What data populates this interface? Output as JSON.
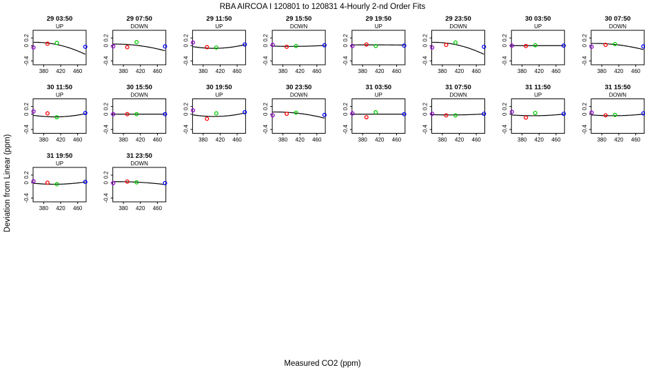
{
  "figure": {
    "title": "RBA   AIRCOA I   120801 to 120831   4-Hourly 2-nd Order Fits",
    "xlabel": "Measured CO2 (ppm)",
    "ylabel": "Deviation from Linear (ppm)"
  },
  "chart_data": {
    "type": "scatter",
    "title": "RBA   AIRCOA I   120801 to 120831   4-Hourly 2-nd Order Fits",
    "xlabel": "Measured CO2 (ppm)",
    "ylabel": "Deviation from Linear (ppm)",
    "xlim": [
      355,
      480
    ],
    "ylim": [
      -0.5,
      0.4
    ],
    "xticks": [
      380,
      420,
      460
    ],
    "xtick_labels": [
      "380",
      "420",
      "460"
    ],
    "yticks": [
      -0.4,
      0.0,
      0.2
    ],
    "ytick_labels": [
      "-0.4",
      "0",
      "0.2"
    ],
    "point_colors": [
      "#9400D3",
      "#FF0000",
      "#00CC00",
      "#0000FF"
    ],
    "curve_color": "#000000",
    "panels": [
      {
        "label": "29 03:50",
        "direction": "UP",
        "x": [
          356,
          389,
          411,
          478
        ],
        "y": [
          -0.05,
          0.05,
          0.07,
          -0.03
        ],
        "fit": [
          -2.25e-05,
          0.0162,
          -2.83
        ]
      },
      {
        "label": "29 07:50",
        "direction": "DOWN",
        "x": [
          356,
          389,
          411,
          478
        ],
        "y": [
          -0.02,
          -0.04,
          0.09,
          -0.02
        ],
        "fit": [
          -1.25e-05,
          0.009,
          -1.58
        ]
      },
      {
        "label": "29 11:50",
        "direction": "UP",
        "x": [
          356,
          389,
          411,
          478
        ],
        "y": [
          0.08,
          -0.04,
          -0.05,
          0.03
        ],
        "fit": [
          1.8e-05,
          -0.0146,
          2.89
        ]
      },
      {
        "label": "29 15:50",
        "direction": "DOWN",
        "x": [
          356,
          389,
          411,
          478
        ],
        "y": [
          0.02,
          -0.03,
          -0.01,
          0.01
        ],
        "fit": [
          4e-06,
          -0.0032,
          0.62
        ]
      },
      {
        "label": "29 19:50",
        "direction": "UP",
        "x": [
          356,
          389,
          411,
          478
        ],
        "y": [
          -0.01,
          0.03,
          -0.01,
          0.0
        ],
        "fit": [
          -1e-06,
          0.0008,
          -0.14
        ]
      },
      {
        "label": "29 23:50",
        "direction": "DOWN",
        "x": [
          356,
          389,
          411,
          478
        ],
        "y": [
          -0.05,
          0.02,
          0.08,
          -0.03
        ],
        "fit": [
          -2.25e-05,
          0.0162,
          -2.83
        ]
      },
      {
        "label": "30 03:50",
        "direction": "UP",
        "x": [
          356,
          389,
          411,
          478
        ],
        "y": [
          0.0,
          -0.01,
          0.01,
          0.0
        ],
        "fit": [
          0.0,
          0.0,
          0.0
        ]
      },
      {
        "label": "30 07:50",
        "direction": "DOWN",
        "x": [
          356,
          389,
          411,
          478
        ],
        "y": [
          -0.03,
          0.02,
          0.04,
          -0.02
        ],
        "fit": [
          -1.2e-05,
          0.0087,
          -1.52
        ]
      },
      {
        "label": "30 11:50",
        "direction": "UP",
        "x": [
          356,
          389,
          411,
          478
        ],
        "y": [
          0.07,
          0.02,
          -0.08,
          0.03
        ],
        "fit": [
          1.6e-05,
          -0.013,
          2.57
        ]
      },
      {
        "label": "30 15:50",
        "direction": "DOWN",
        "x": [
          356,
          389,
          411,
          478
        ],
        "y": [
          0.0,
          0.0,
          0.0,
          0.0
        ],
        "fit": [
          0.0,
          0.0,
          0.0
        ]
      },
      {
        "label": "30 19:50",
        "direction": "UP",
        "x": [
          356,
          389,
          411,
          478
        ],
        "y": [
          0.1,
          -0.12,
          0.02,
          0.05
        ],
        "fit": [
          1.75e-05,
          -0.0142,
          2.82
        ]
      },
      {
        "label": "30 23:50",
        "direction": "DOWN",
        "x": [
          356,
          389,
          411,
          478
        ],
        "y": [
          -0.03,
          0.01,
          0.04,
          -0.02
        ],
        "fit": [
          -1.2e-05,
          0.0087,
          -1.52
        ]
      },
      {
        "label": "31 03:50",
        "direction": "UP",
        "x": [
          356,
          389,
          411,
          478
        ],
        "y": [
          0.02,
          -0.08,
          0.05,
          0.0
        ],
        "fit": [
          0.0,
          0.0,
          0.0
        ]
      },
      {
        "label": "31 07:50",
        "direction": "DOWN",
        "x": [
          356,
          389,
          411,
          478
        ],
        "y": [
          0.01,
          -0.03,
          -0.03,
          0.01
        ],
        "fit": [
          4e-06,
          -0.0032,
          0.62
        ]
      },
      {
        "label": "31 11:50",
        "direction": "UP",
        "x": [
          356,
          389,
          411,
          478
        ],
        "y": [
          0.06,
          -0.09,
          0.03,
          0.01
        ],
        "fit": [
          8e-06,
          -0.0065,
          1.28
        ]
      },
      {
        "label": "31 15:50",
        "direction": "DOWN",
        "x": [
          356,
          389,
          411,
          478
        ],
        "y": [
          0.04,
          -0.03,
          -0.02,
          0.02
        ],
        "fit": [
          8e-06,
          -0.0065,
          1.28
        ]
      },
      {
        "label": "31 19:50",
        "direction": "UP",
        "x": [
          356,
          389,
          411,
          478
        ],
        "y": [
          0.04,
          0.0,
          -0.04,
          0.02
        ],
        "fit": [
          1.1e-05,
          -0.0089,
          1.76
        ]
      },
      {
        "label": "31 23:50",
        "direction": "DOWN",
        "x": [
          356,
          389,
          411,
          478
        ],
        "y": [
          -0.01,
          0.03,
          0.01,
          -0.01
        ],
        "fit": [
          -6e-06,
          0.0044,
          -0.78
        ]
      }
    ]
  }
}
